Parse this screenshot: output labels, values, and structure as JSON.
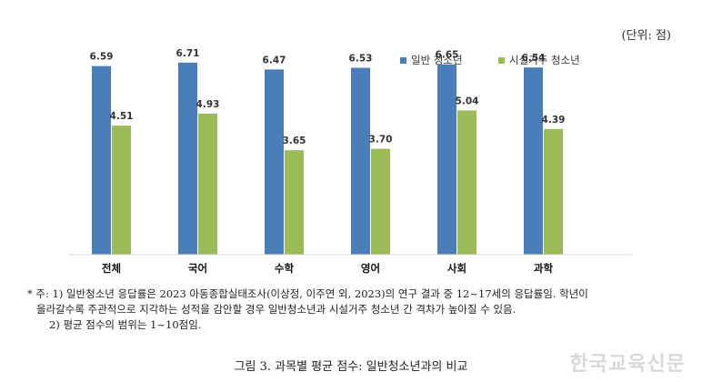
{
  "unit_label": "(단위: 점)",
  "chart_data": {
    "type": "bar",
    "categories": [
      "전체",
      "국어",
      "수학",
      "영어",
      "사회",
      "과학"
    ],
    "series": [
      {
        "name": "일반 청소년",
        "color": "#4a7ebb",
        "values": [
          6.59,
          6.71,
          6.47,
          6.53,
          6.65,
          6.54
        ]
      },
      {
        "name": "시설거주 청소년",
        "color": "#9bbb59",
        "values": [
          4.51,
          4.93,
          3.65,
          3.7,
          5.04,
          4.39
        ]
      }
    ],
    "title": "",
    "xlabel": "",
    "ylabel": "",
    "ylim": [
      0,
      7.5
    ],
    "grid": false,
    "legend": "top-right"
  },
  "notes": {
    "line1": "* 주: 1) 일반청소년 응답률은 2023 아동종합실태조사(이상정, 이주연 외, 2023)의 연구 결과 중 12~17세의 응답률임. 학년이",
    "line2": "올라갈수록 주관적으로 지각하는 성적을 감안할 경우 일반청소년과 시설거주 청소년 간 격차가 높아질 수 있음.",
    "line3": "2) 평균 점수의 범위는 1~10점임."
  },
  "caption": "그림 3. 과목별 평균 점수: 일반청소년과의 비교",
  "watermark": "한국교육신문"
}
